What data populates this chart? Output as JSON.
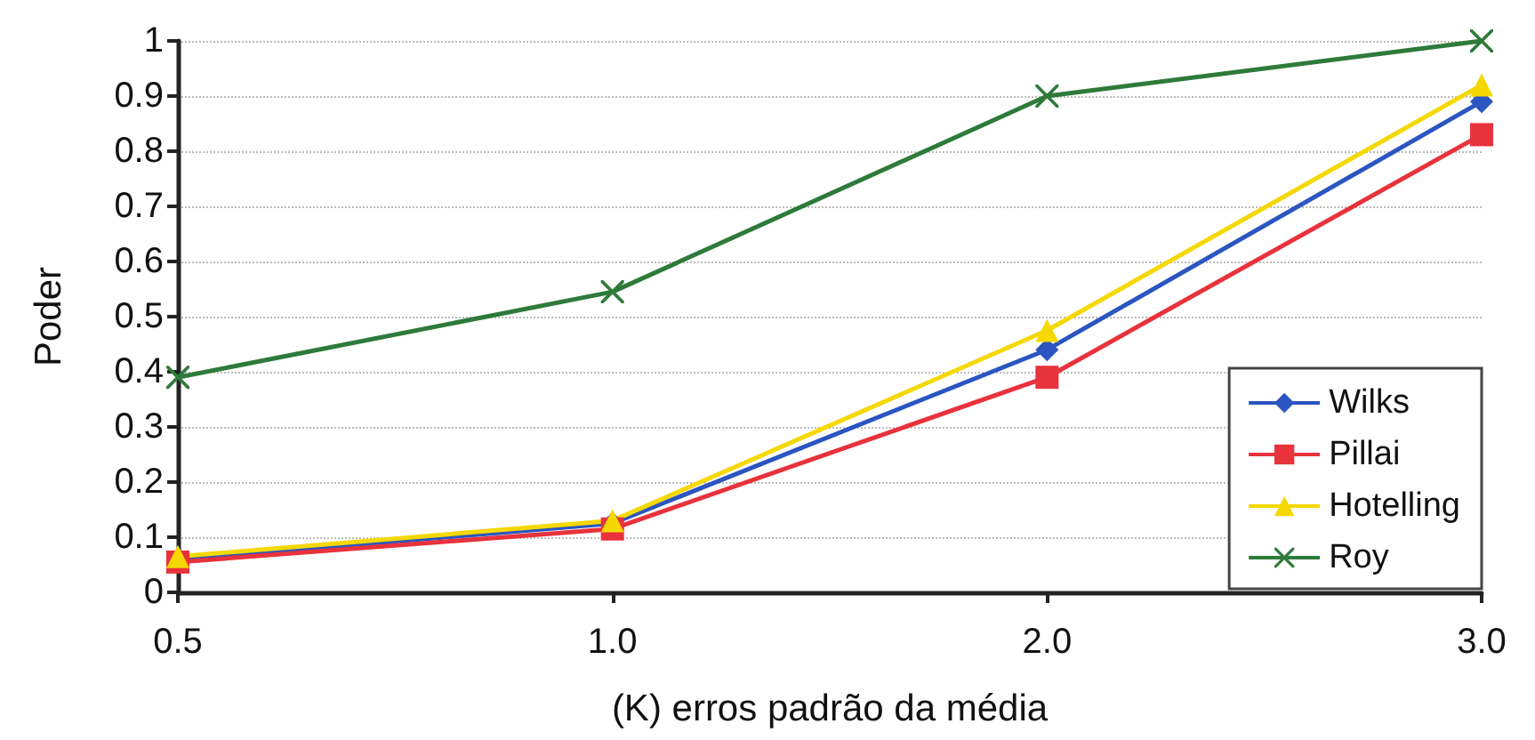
{
  "chart_data": {
    "type": "line",
    "xlabel": "(K) erros padrão da média",
    "ylabel": "Poder",
    "categories": [
      "0.5",
      "1.0",
      "2.0",
      "3.0"
    ],
    "series": [
      {
        "name": "Wilks",
        "color": "#2b55c0",
        "marker": "diamond",
        "values": [
          0.06,
          0.125,
          0.44,
          0.89
        ]
      },
      {
        "name": "Pillai",
        "color": "#e8323c",
        "marker": "square",
        "values": [
          0.055,
          0.115,
          0.39,
          0.83
        ]
      },
      {
        "name": "Hotelling",
        "color": "#f5d800",
        "marker": "triangle",
        "values": [
          0.065,
          0.13,
          0.475,
          0.92
        ]
      },
      {
        "name": "Roy",
        "color": "#2e7a3a",
        "marker": "cross",
        "values": [
          0.39,
          0.545,
          0.9,
          1.0
        ]
      }
    ],
    "ylim": [
      0,
      1
    ],
    "yticks": [
      0,
      0.1,
      0.2,
      0.3,
      0.4,
      0.5,
      0.6,
      0.7,
      0.8,
      0.9,
      1
    ],
    "grid": "y",
    "legend": "bottom right",
    "line_style": "solid"
  }
}
